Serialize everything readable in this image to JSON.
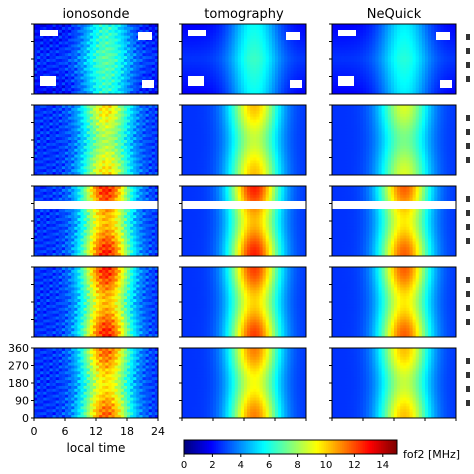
{
  "chart_data": {
    "type": "heatmap",
    "columns": [
      {
        "title": "ionosonde"
      },
      {
        "title": "tomography"
      },
      {
        "title": "NeQuick"
      }
    ],
    "rows": 5,
    "x": {
      "label": "local time",
      "lim": [
        0,
        24
      ],
      "ticks": [
        0,
        6,
        12,
        18,
        24
      ]
    },
    "y": {
      "lim": [
        0,
        360
      ],
      "ticks": [
        0,
        90,
        180,
        270,
        360
      ]
    },
    "colorbar": {
      "label": "fof2 [MHz]",
      "lim": [
        0,
        15
      ],
      "ticks": [
        0,
        2,
        4,
        6,
        8,
        10,
        12,
        14
      ],
      "colormap": "jet"
    },
    "panel_peak_fof2": [
      [
        7,
        6.5,
        6.2
      ],
      [
        10,
        10.5,
        9
      ],
      [
        13,
        13,
        12
      ],
      [
        13,
        12.5,
        12
      ],
      [
        12,
        11.5,
        10.5
      ]
    ],
    "grid": false
  }
}
